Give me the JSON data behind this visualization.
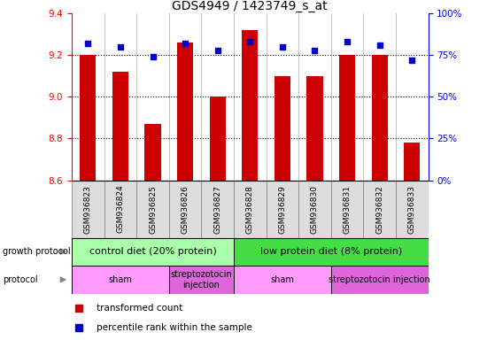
{
  "title": "GDS4949 / 1423749_s_at",
  "samples": [
    "GSM936823",
    "GSM936824",
    "GSM936825",
    "GSM936826",
    "GSM936827",
    "GSM936828",
    "GSM936829",
    "GSM936830",
    "GSM936831",
    "GSM936832",
    "GSM936833"
  ],
  "transformed_count": [
    9.2,
    9.12,
    8.87,
    9.26,
    9.0,
    9.32,
    9.1,
    9.1,
    9.2,
    9.2,
    8.78
  ],
  "percentile_rank": [
    82,
    80,
    74,
    82,
    78,
    83,
    80,
    78,
    83,
    81,
    72
  ],
  "ylim_left": [
    8.6,
    9.4
  ],
  "ylim_right": [
    0,
    100
  ],
  "yticks_left": [
    8.6,
    8.8,
    9.0,
    9.2,
    9.4
  ],
  "yticks_right": [
    0,
    25,
    50,
    75,
    100
  ],
  "ytick_labels_right": [
    "0%",
    "25%",
    "50%",
    "75%",
    "100%"
  ],
  "bar_color": "#cc0000",
  "dot_color": "#0000cc",
  "bar_bottom": 8.6,
  "growth_protocol_groups": [
    {
      "label": "control diet (20% protein)",
      "start": 0,
      "end": 5,
      "color": "#aaffaa"
    },
    {
      "label": "low protein diet (8% protein)",
      "start": 5,
      "end": 11,
      "color": "#44dd44"
    }
  ],
  "protocol_groups": [
    {
      "label": "sham",
      "start": 0,
      "end": 3,
      "color": "#ff99ff"
    },
    {
      "label": "streptozotocin\ninjection",
      "start": 3,
      "end": 5,
      "color": "#dd66dd"
    },
    {
      "label": "sham",
      "start": 5,
      "end": 8,
      "color": "#ff99ff"
    },
    {
      "label": "streptozotocin injection",
      "start": 8,
      "end": 11,
      "color": "#dd66dd"
    }
  ],
  "legend_items": [
    {
      "color": "#cc0000",
      "label": "transformed count"
    },
    {
      "color": "#0000cc",
      "label": "percentile rank within the sample"
    }
  ],
  "background_color": "#ffffff",
  "title_fontsize": 10,
  "tick_fontsize": 7.5,
  "label_fontsize": 8,
  "sample_fontsize": 6.5,
  "annot_fontsize": 8,
  "legend_fontsize": 7.5
}
